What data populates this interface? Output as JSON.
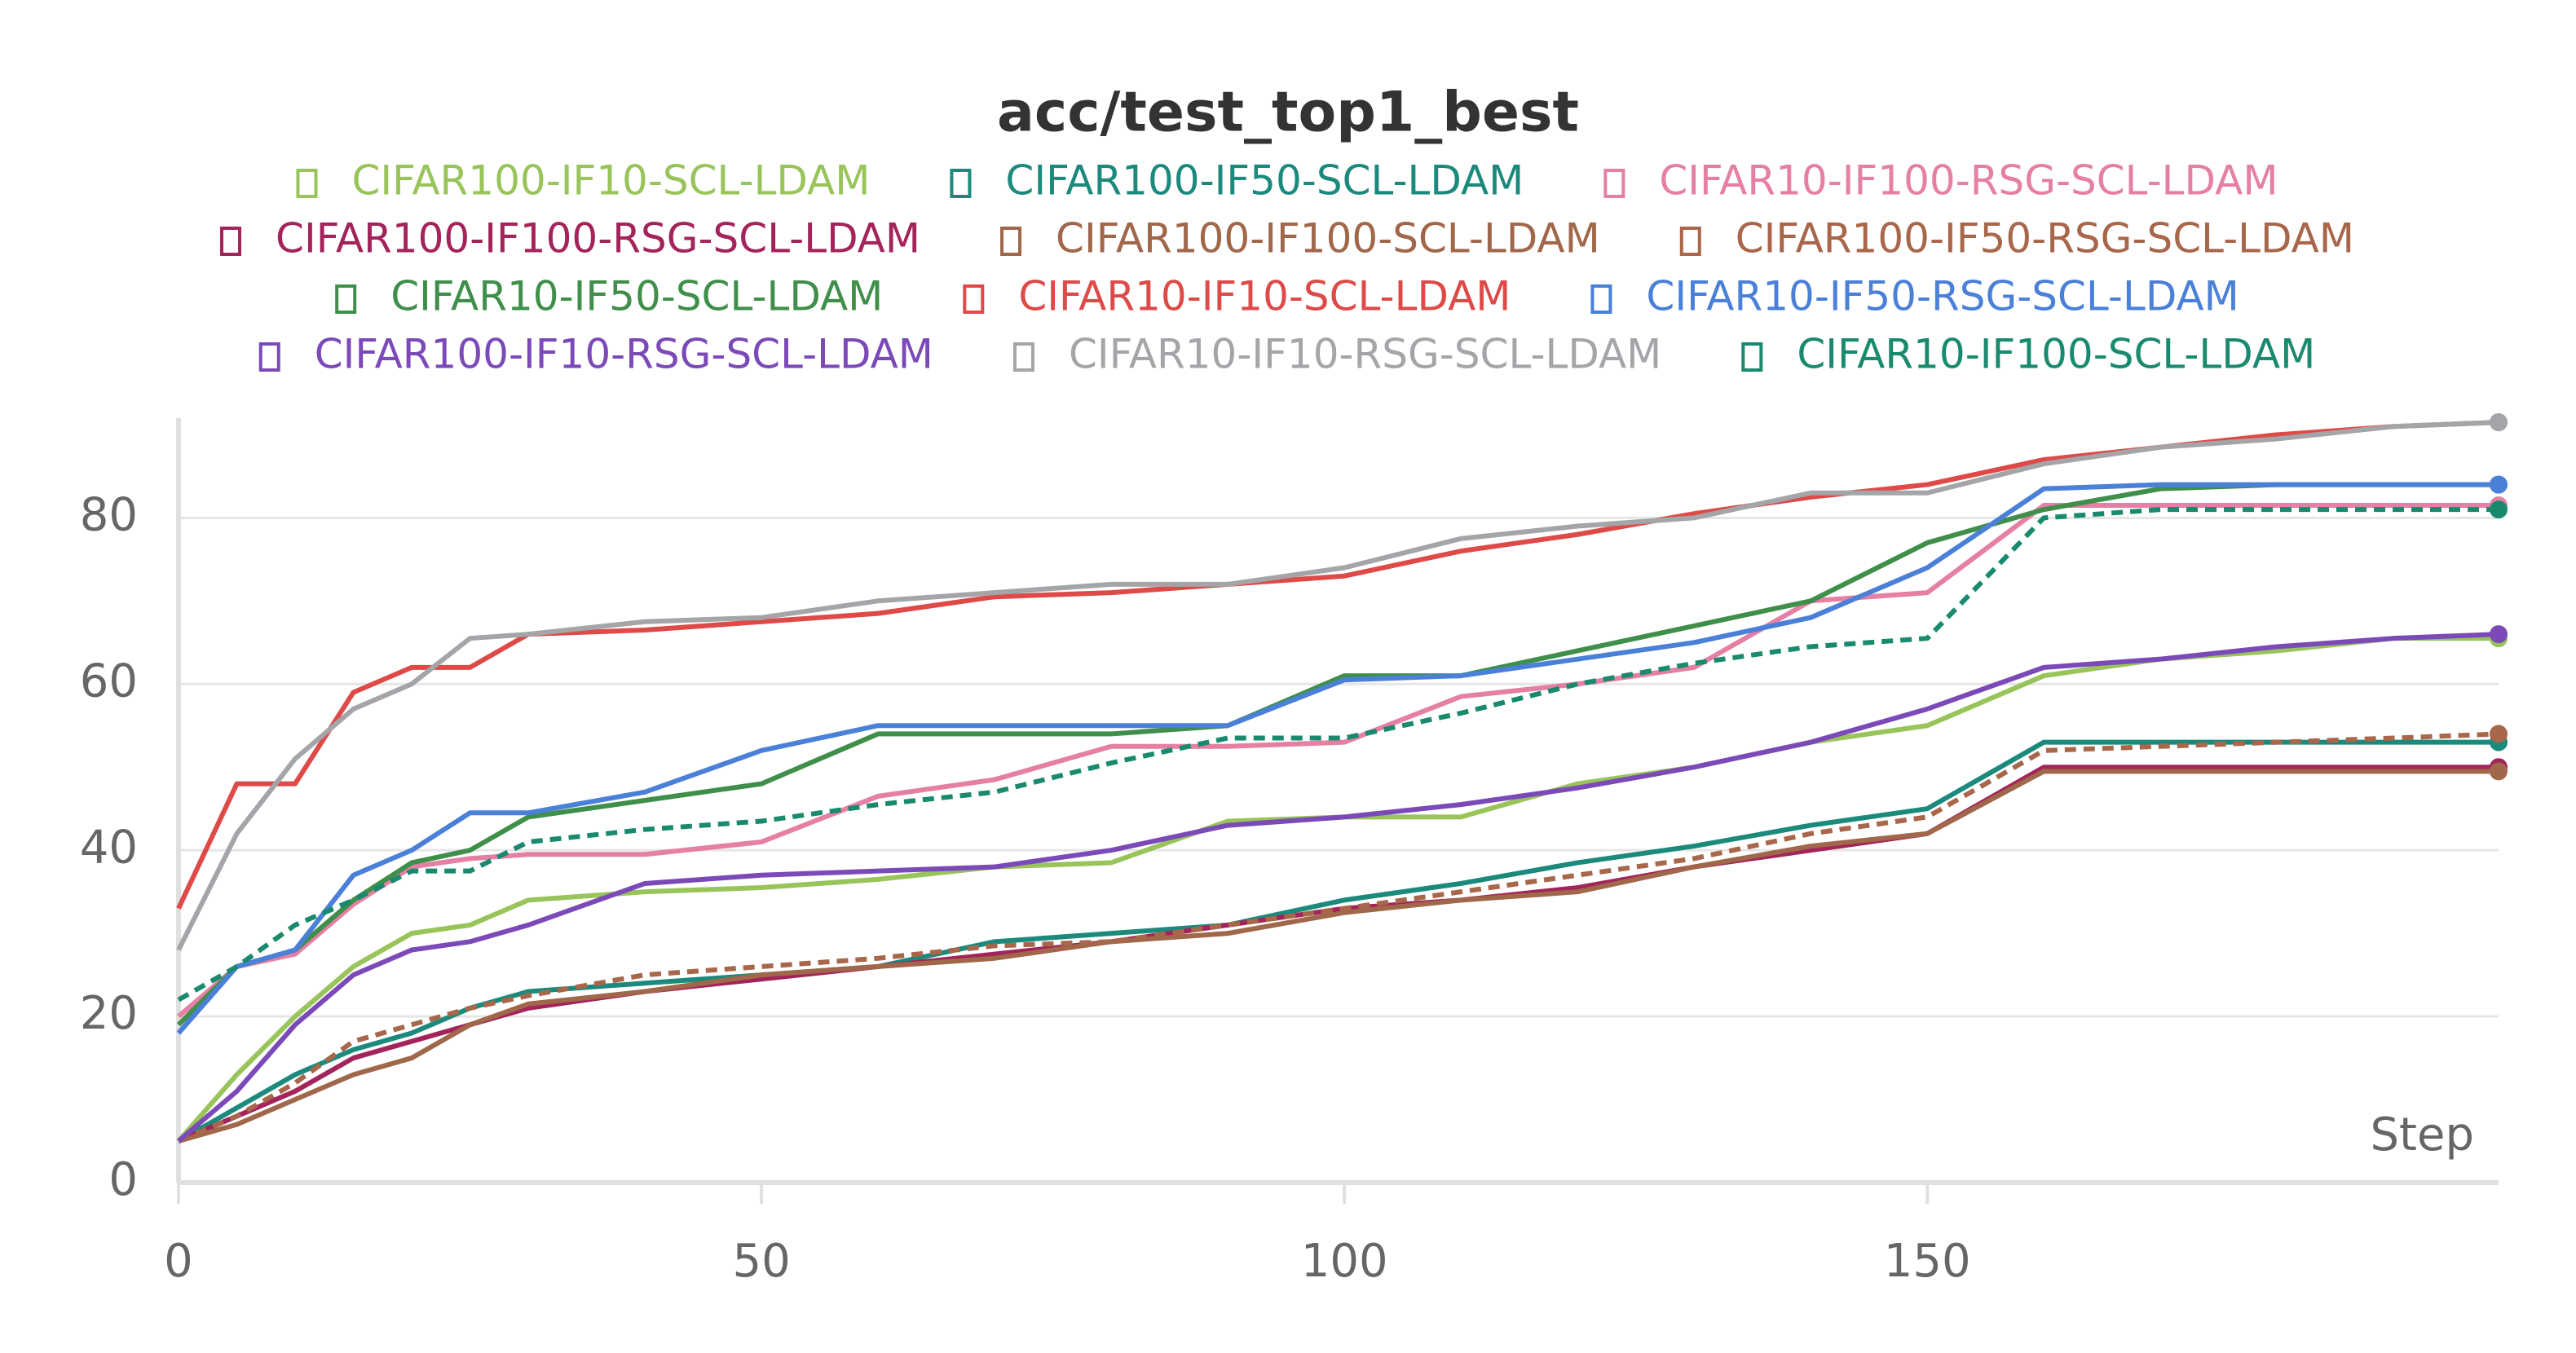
{
  "chart_data": {
    "type": "line",
    "title": "acc/test_top1_best",
    "x_label": "Step",
    "x": [
      0,
      5,
      10,
      15,
      20,
      25,
      30,
      40,
      50,
      60,
      70,
      80,
      90,
      100,
      110,
      120,
      130,
      140,
      150,
      160,
      170,
      180,
      190,
      199
    ],
    "xlim": [
      0,
      199
    ],
    "xticks": [
      0,
      50,
      100,
      150
    ],
    "ylim": [
      0,
      92
    ],
    "yticks": [
      0,
      20,
      40,
      60,
      80
    ],
    "grid": true,
    "series": [
      {
        "name": "CIFAR100-IF10-SCL-LDAM",
        "color": "#98c45a",
        "dashed": false,
        "values": [
          5,
          13,
          20,
          26,
          30,
          31,
          34,
          35,
          35.5,
          36.5,
          38,
          38.5,
          43.5,
          44,
          44,
          48,
          50,
          53,
          55,
          61,
          63,
          64,
          65.5,
          65.5
        ]
      },
      {
        "name": "CIFAR100-IF50-SCL-LDAM",
        "color": "#1b8a7c",
        "dashed": false,
        "values": [
          5,
          9,
          13,
          16,
          18,
          21,
          23,
          24,
          25,
          26,
          29,
          30,
          31,
          34,
          36,
          38.5,
          40.5,
          43,
          45,
          53,
          53,
          53,
          53,
          53
        ]
      },
      {
        "name": "CIFAR10-IF100-RSG-SCL-LDAM",
        "color": "#e57fa4",
        "dashed": false,
        "values": [
          20,
          26,
          27.5,
          33.5,
          38,
          39,
          39.5,
          39.5,
          41,
          46.5,
          48.5,
          52.5,
          52.5,
          53,
          58.5,
          60,
          62,
          70,
          71,
          81.5,
          81.5,
          81.5,
          81.5,
          81.5
        ]
      },
      {
        "name": "CIFAR100-IF100-RSG-SCL-LDAM",
        "color": "#a3245a",
        "dashed": false,
        "values": [
          5,
          8,
          11,
          15,
          17,
          19,
          21,
          23,
          24.5,
          26,
          27.5,
          29,
          31,
          33,
          34,
          35.5,
          38,
          40,
          42,
          50,
          50,
          50,
          50,
          50
        ]
      },
      {
        "name": "CIFAR100-IF100-SCL-LDAM",
        "color": "#a0674a",
        "dashed": false,
        "values": [
          5,
          7,
          10,
          13,
          15,
          19,
          21.5,
          23,
          25,
          26,
          27,
          29,
          30,
          32.5,
          34,
          35,
          38,
          40.5,
          42,
          49.5,
          49.5,
          49.5,
          49.5,
          49.5
        ]
      },
      {
        "name": "CIFAR100-IF50-RSG-SCL-LDAM",
        "color": "#a8664a",
        "dashed": true,
        "values": [
          5,
          8,
          12,
          17,
          19,
          21,
          22.5,
          25,
          26,
          27,
          28.5,
          29,
          31,
          33,
          35,
          37,
          39,
          42,
          44,
          52,
          52.5,
          53,
          53.5,
          54
        ]
      },
      {
        "name": "CIFAR10-IF50-SCL-LDAM",
        "color": "#3f8f4a",
        "dashed": false,
        "values": [
          19,
          26,
          28,
          34,
          38.5,
          40,
          44,
          46,
          48,
          54,
          54,
          54,
          55,
          61,
          61,
          64,
          67,
          70,
          77,
          81,
          83.5,
          84,
          84,
          84
        ]
      },
      {
        "name": "CIFAR10-IF10-SCL-LDAM",
        "color": "#de4a48",
        "dashed": false,
        "values": [
          33,
          48,
          48,
          59,
          62,
          62,
          66,
          66.5,
          67.5,
          68.5,
          70.5,
          71,
          72,
          73,
          76,
          78,
          80.5,
          82.5,
          84,
          87,
          88.5,
          90,
          91,
          91.5
        ]
      },
      {
        "name": "CIFAR10-IF50-RSG-SCL-LDAM",
        "color": "#4a80d8",
        "dashed": false,
        "values": [
          18,
          26,
          28,
          37,
          40,
          44.5,
          44.5,
          47,
          52,
          55,
          55,
          55,
          55,
          60.5,
          61,
          63,
          65,
          68,
          74,
          83.5,
          84,
          84,
          84,
          84
        ]
      },
      {
        "name": "CIFAR100-IF10-RSG-SCL-LDAM",
        "color": "#7b4ab8",
        "dashed": false,
        "values": [
          5,
          11,
          19,
          25,
          28,
          29,
          31,
          36,
          37,
          37.5,
          38,
          40,
          43,
          44,
          45.5,
          47.5,
          50,
          53,
          57,
          62,
          63,
          64.5,
          65.5,
          66
        ]
      },
      {
        "name": "CIFAR10-IF10-RSG-SCL-LDAM",
        "color": "#a3a5a8",
        "dashed": false,
        "values": [
          28,
          42,
          51,
          57,
          60,
          65.5,
          66,
          67.5,
          68,
          70,
          71,
          72,
          72,
          74,
          77.5,
          79,
          80,
          83,
          83,
          86.5,
          88.5,
          89.5,
          91,
          91.5
        ]
      },
      {
        "name": "CIFAR10-IF100-SCL-LDAM",
        "color": "#1a8a6e",
        "dashed": true,
        "values": [
          22,
          26,
          31,
          34,
          37.5,
          37.5,
          41,
          42.5,
          43.5,
          45.5,
          47,
          50.5,
          53.5,
          53.5,
          56.5,
          60,
          62.5,
          64.5,
          65.5,
          80,
          81,
          81,
          81,
          81
        ]
      }
    ]
  }
}
